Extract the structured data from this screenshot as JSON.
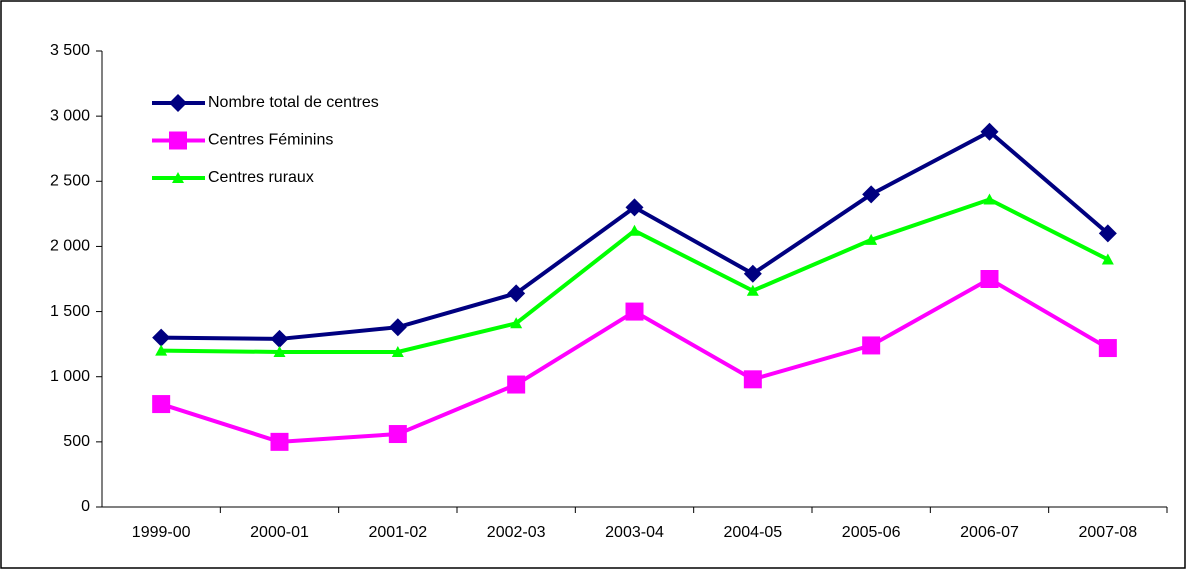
{
  "chart_data": {
    "type": "line",
    "categories": [
      "1999-00",
      "2000-01",
      "2001-02",
      "2002-03",
      "2003-04",
      "2004-05",
      "2005-06",
      "2006-07",
      "2007-08"
    ],
    "series": [
      {
        "name": "Nombre total de centres",
        "color": "#000080",
        "marker": "diamond",
        "values": [
          1300,
          1290,
          1380,
          1640,
          2300,
          1790,
          2400,
          2880,
          2100
        ]
      },
      {
        "name": "Centres Féminins",
        "color": "#ff00ff",
        "marker": "square",
        "values": [
          790,
          500,
          560,
          940,
          1500,
          980,
          1240,
          1750,
          1220
        ]
      },
      {
        "name": "Centres ruraux",
        "color": "#00ff00",
        "marker": "triangle",
        "values": [
          1200,
          1190,
          1190,
          1410,
          2120,
          1660,
          2050,
          2360,
          1900
        ]
      }
    ],
    "ylim": [
      0,
      3500
    ],
    "yticks": [
      0,
      500,
      {
        "value": 1000,
        "label": "1 000"
      },
      {
        "value": 1500,
        "label": "1 500"
      },
      {
        "value": 2000,
        "label": "2 000"
      },
      {
        "value": 2500,
        "label": "2 500"
      },
      {
        "value": 3000,
        "label": "3 000"
      },
      {
        "value": 3500,
        "label": "3 500"
      }
    ],
    "grid": false,
    "legend": "upper left"
  }
}
